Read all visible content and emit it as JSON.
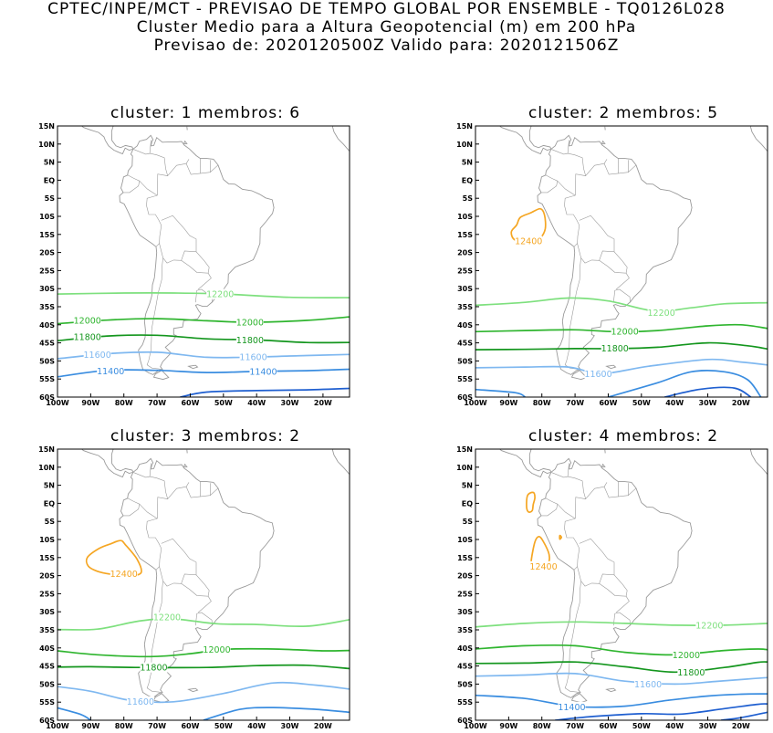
{
  "header": {
    "line1": "CPTEC/INPE/MCT - PREVISAO DE TEMPO GLOBAL POR ENSEMBLE - TQ0126L028",
    "line2": "Cluster Medio para a Altura Geopotencial (m) em 200 hPa",
    "line3": "Previsao de: 2020120500Z    Valido para: 2020121506Z"
  },
  "axes": {
    "lat_labels": [
      "15N",
      "10N",
      "5N",
      "EQ",
      "5S",
      "10S",
      "15S",
      "20S",
      "25S",
      "30S",
      "35S",
      "40S",
      "45S",
      "50S",
      "55S",
      "60S"
    ],
    "lon_labels": [
      "100W",
      "90W",
      "80W",
      "70W",
      "60W",
      "50W",
      "40W",
      "30W",
      "20W"
    ]
  },
  "colors": {
    "c12400": "#f5a623",
    "c12200": "#7ee07e",
    "c12000": "#2fb52f",
    "c11800": "#14961e",
    "c11600": "#7fb8f0",
    "c11400": "#3a8de0",
    "c11200": "#1f5fd0",
    "land": "#9a9a9a"
  },
  "panels": [
    {
      "title": "cluster: 1   membros: 6",
      "labels": [
        {
          "text": "12200",
          "lon": -51,
          "lat": -31.5,
          "c": "c12200"
        },
        {
          "text": "12000",
          "lon": -91,
          "lat": -38.8,
          "c": "c12000"
        },
        {
          "text": "12000",
          "lon": -42,
          "lat": -39.3,
          "c": "c12000"
        },
        {
          "text": "11800",
          "lon": -91,
          "lat": -43.3,
          "c": "c11800"
        },
        {
          "text": "11800",
          "lon": -42,
          "lat": -44.2,
          "c": "c11800"
        },
        {
          "text": "11600",
          "lon": -88,
          "lat": -48.2,
          "c": "c11600"
        },
        {
          "text": "11600",
          "lon": -41,
          "lat": -48.9,
          "c": "c11600"
        },
        {
          "text": "11400",
          "lon": -84,
          "lat": -52.8,
          "c": "c11400"
        },
        {
          "text": "11400",
          "lon": -38,
          "lat": -52.9,
          "c": "c11400"
        }
      ]
    },
    {
      "title": "cluster: 2   membros: 5",
      "labels": [
        {
          "text": "12400",
          "lon": -84,
          "lat": -16.8,
          "c": "c12400"
        },
        {
          "text": "12200",
          "lon": -44,
          "lat": -36.6,
          "c": "c12200"
        },
        {
          "text": "12000",
          "lon": -55,
          "lat": -41.8,
          "c": "c12000"
        },
        {
          "text": "11800",
          "lon": -58,
          "lat": -46.5,
          "c": "c11800"
        },
        {
          "text": "11600",
          "lon": -63,
          "lat": -53.6,
          "c": "c11600"
        }
      ]
    },
    {
      "title": "cluster: 3   membros: 2",
      "labels": [
        {
          "text": "12400",
          "lon": -80,
          "lat": -19.5,
          "c": "c12400"
        },
        {
          "text": "12200",
          "lon": -67,
          "lat": -31.5,
          "c": "c12200"
        },
        {
          "text": "12000",
          "lon": -52,
          "lat": -40.4,
          "c": "c12000"
        },
        {
          "text": "11800",
          "lon": -71,
          "lat": -45.4,
          "c": "c11800"
        },
        {
          "text": "11600",
          "lon": -75,
          "lat": -54.8,
          "c": "c11600"
        }
      ]
    },
    {
      "title": "cluster: 4   membros: 2",
      "labels": [
        {
          "text": "12400",
          "lon": -79.5,
          "lat": -17.4,
          "c": "c12400"
        },
        {
          "text": "12200",
          "lon": -29.5,
          "lat": -33.7,
          "c": "c12200"
        },
        {
          "text": "12000",
          "lon": -36.5,
          "lat": -42.0,
          "c": "c12000"
        },
        {
          "text": "11800",
          "lon": -35,
          "lat": -46.7,
          "c": "c11800"
        },
        {
          "text": "11600",
          "lon": -48,
          "lat": -50.0,
          "c": "c11600"
        },
        {
          "text": "11400",
          "lon": -71,
          "lat": -56.3,
          "c": "c11400"
        }
      ]
    }
  ]
}
